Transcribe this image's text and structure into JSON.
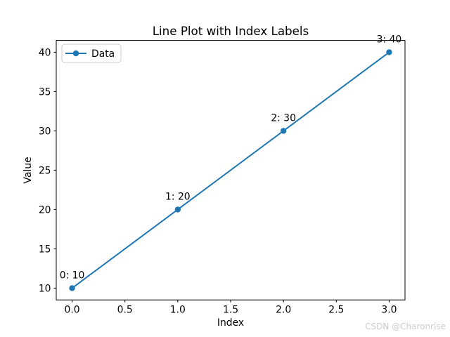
{
  "chart_data": {
    "type": "line",
    "title": "Line Plot with Index Labels",
    "xlabel": "Index",
    "ylabel": "Value",
    "legend": {
      "label": "Data",
      "position": "upper left"
    },
    "series": [
      {
        "name": "Data",
        "x": [
          0,
          1,
          2,
          3
        ],
        "y": [
          10,
          20,
          30,
          40
        ],
        "point_labels": [
          "0: 10",
          "1: 20",
          "2: 30",
          "3: 40"
        ],
        "color": "#1f77b4",
        "marker": "circle"
      }
    ],
    "xticks": [
      0.0,
      0.5,
      1.0,
      1.5,
      2.0,
      2.5,
      3.0
    ],
    "xtick_labels": [
      "0.0",
      "0.5",
      "1.0",
      "1.5",
      "2.0",
      "2.5",
      "3.0"
    ],
    "yticks": [
      10,
      15,
      20,
      25,
      30,
      35,
      40
    ],
    "ytick_labels": [
      "10",
      "15",
      "20",
      "25",
      "30",
      "35",
      "40"
    ],
    "xlim": [
      -0.15,
      3.15
    ],
    "ylim": [
      8.5,
      41.5
    ],
    "grid": false
  },
  "watermark": "CSDN @Charonrise",
  "colors": {
    "line": "#1f77b4",
    "text": "#000000",
    "watermark": "#cccccc",
    "background": "#ffffff",
    "legend_border": "#cccccc"
  }
}
